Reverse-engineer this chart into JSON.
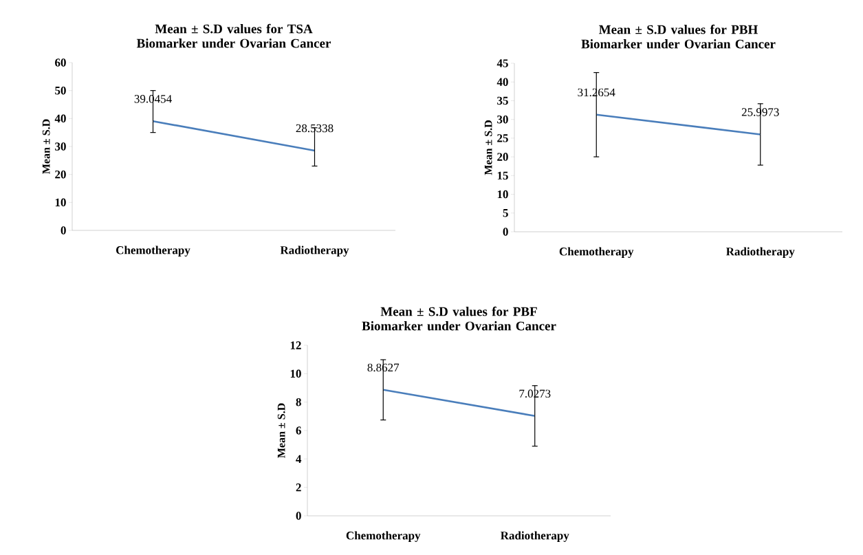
{
  "chart_data": [
    {
      "type": "line",
      "title": "Mean ± S.D values for TSA Biomarker under Ovarian Cancer",
      "ylabel": "Mean ± S.D",
      "categories": [
        "Chemotherapy",
        "Radiotherapy"
      ],
      "values": [
        39.0454,
        28.5338
      ],
      "errors": [
        [
          35,
          50
        ],
        [
          23,
          36.7
        ]
      ],
      "color": "#4a7ebb",
      "data_labels": true,
      "marker": "none",
      "ylim": [
        0,
        60
      ],
      "yticks": [
        0,
        10,
        20,
        30,
        40,
        50,
        60
      ]
    },
    {
      "type": "line",
      "title": "Mean ± S.D values for PBH Biomarker under Ovarian Cancer",
      "ylabel": "Mean ± S.D",
      "categories": [
        "Chemotherapy",
        "Radiotherapy"
      ],
      "values": [
        31.2654,
        25.9973
      ],
      "errors": [
        11.25,
        8.2
      ],
      "color": "#4a7ebb",
      "data_labels": true,
      "marker": "none",
      "ylim": [
        0,
        45
      ],
      "yticks": [
        0,
        5,
        10,
        15,
        20,
        25,
        30,
        35,
        40,
        45
      ]
    },
    {
      "type": "line",
      "title": "Mean ± S.D values for PBF Biomarker under Ovarian Cancer",
      "ylabel": "Mean ± S.D",
      "categories": [
        "Chemotherapy",
        "Radiotherapy"
      ],
      "values": [
        8.8627,
        7.0273
      ],
      "errors": [
        2.12,
        2.13
      ],
      "color": "#4a7ebb",
      "data_labels": true,
      "marker": "none",
      "ylim": [
        0,
        12
      ],
      "yticks": [
        0,
        2,
        4,
        6,
        8,
        10,
        12
      ]
    }
  ]
}
